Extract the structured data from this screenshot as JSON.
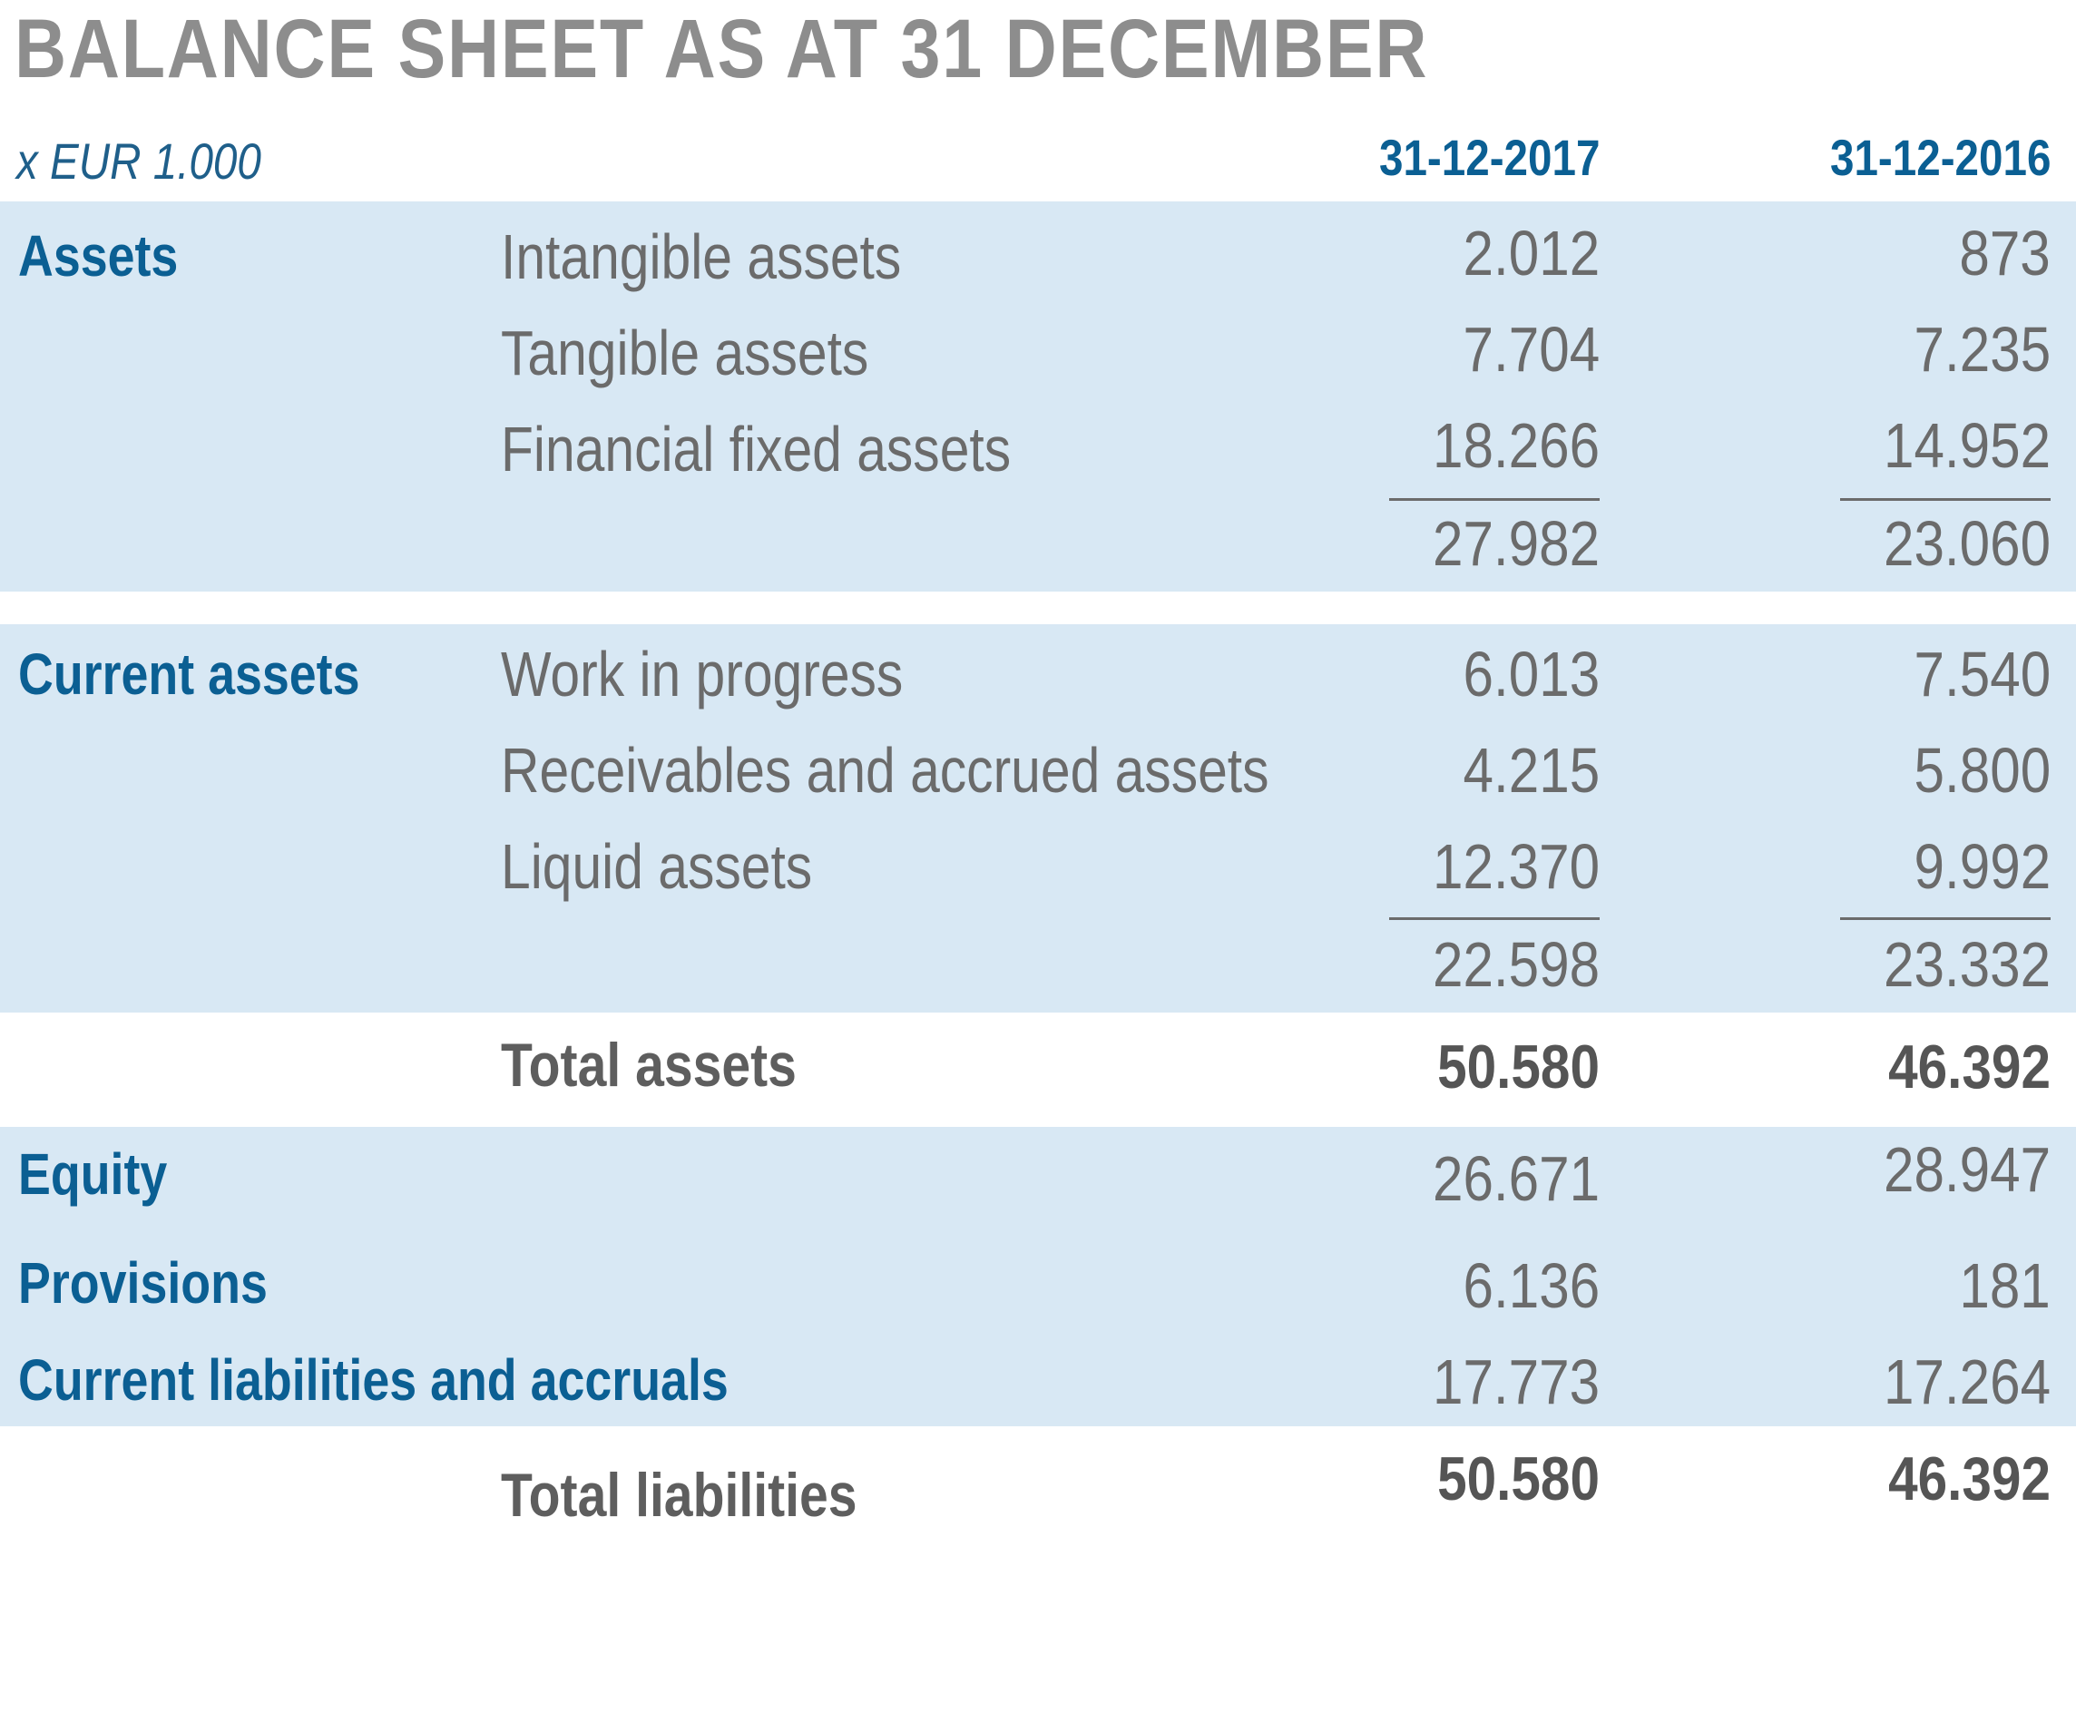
{
  "title": "BALANCE SHEET AS AT 31 DECEMBER",
  "unit_label": "x EUR 1.000",
  "columns": [
    "31-12-2017",
    "31-12-2016"
  ],
  "colors": {
    "title": "#8d8d8d",
    "heading_blue": "#0b5f93",
    "band": "#d8e8f4",
    "text_gray": "#6b6b6b"
  },
  "fixed_assets": {
    "category": "Assets",
    "rows": [
      {
        "label": "Intangible assets",
        "v2017": "2.012",
        "v2016": "873"
      },
      {
        "label": "Tangible assets",
        "v2017": "7.704",
        "v2016": "7.235"
      },
      {
        "label": "Financial fixed assets",
        "v2017": "18.266",
        "v2016": "14.952"
      }
    ],
    "subtotal": {
      "v2017": "27.982",
      "v2016": "23.060"
    }
  },
  "current_assets": {
    "category": "Current assets",
    "rows": [
      {
        "label": "Work in progress",
        "v2017": "6.013",
        "v2016": "7.540"
      },
      {
        "label": "Receivables and accrued assets",
        "v2017": "4.215",
        "v2016": "5.800"
      },
      {
        "label": "Liquid assets",
        "v2017": "12.370",
        "v2016": "9.992"
      }
    ],
    "subtotal": {
      "v2017": "22.598",
      "v2016": "23.332"
    }
  },
  "total_assets": {
    "label": "Total assets",
    "v2017": "50.580",
    "v2016": "46.392"
  },
  "liabilities": [
    {
      "category": "Equity",
      "v2017": "26.671",
      "v2016": "28.947"
    },
    {
      "category": "Provisions",
      "v2017": "6.136",
      "v2016": "181"
    },
    {
      "category": "Current liabilities and accruals",
      "v2017": "17.773",
      "v2016": "17.264"
    }
  ],
  "total_liabilities": {
    "label": "Total liabilities",
    "v2017": "50.580",
    "v2016": "46.392"
  }
}
